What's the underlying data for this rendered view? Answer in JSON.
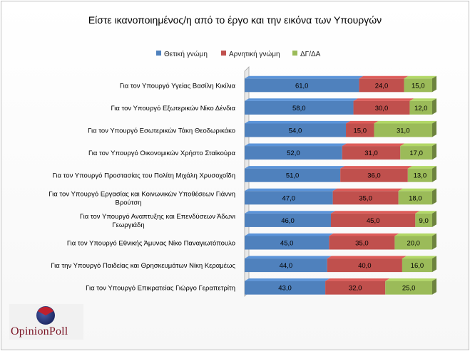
{
  "chart_data": {
    "type": "bar",
    "orientation": "horizontal",
    "stacked": true,
    "title": "Είστε ικανοποιημένος/η από το έργο και την εικόνα των Υπουργών",
    "categories": [
      "Για τον Υπουργό Υγείας Βασίλη Κικίλια",
      "Για τον Υπουργό Εξωτερικών Νίκο Δένδια",
      "Για τον Υπουργό Εσωτερικών Τάκη Θεοδωρικάκο",
      "Για τον Υπουργό Οικονομικών Χρήστο Σταϊκούρα",
      "Για τον Υπουργό Προστασίας του Πολίτη Μιχάλη Χρυσοχοΐδη",
      "Για τον Υπουργό Εργασίας και Κοινωνικών Υποθέσεων Γιάννη Βρούτση",
      "Για τον Υπουργό Αναπτυξης και Επενδύσεων Άδωνι Γεωργιάδη",
      "Για τον Υπουργό Εθνικής Άμυνας Νίκο Παναγιωτόπουλο",
      "Για την Υπουργό Παιδείας και Θρησκευμάτων Νίκη Κεραμέως",
      "Για τον Υπουργό Επικρατείας Γιώργο Γεραπετρίτη"
    ],
    "category_lines": [
      [
        "Για τον Υπουργό Υγείας Βασίλη Κικίλια"
      ],
      [
        "Για τον Υπουργό Εξωτερικών Νίκο Δένδια"
      ],
      [
        "Για τον Υπουργό Εσωτερικών Τάκη Θεοδωρικάκο"
      ],
      [
        "Για τον Υπουργό Οικονομικών Χρήστο Σταϊκούρα"
      ],
      [
        "Για τον Υπουργό Προστασίας του Πολίτη Μιχάλη Χρυσοχοΐδη"
      ],
      [
        "Για τον Υπουργό Εργασίας και Κοινωνικών Υποθέσεων Γιάννη",
        "Βρούτση"
      ],
      [
        "Για τον Υπουργό Αναπτυξης και Επενδύσεων Άδωνι",
        "Γεωργιάδη"
      ],
      [
        "Για τον Υπουργό Εθνικής Άμυνας Νίκο Παναγιωτόπουλο"
      ],
      [
        "Για την Υπουργό Παιδείας και Θρησκευμάτων Νίκη Κεραμέως"
      ],
      [
        "Για τον Υπουργό Επικρατείας Γιώργο Γεραπετρίτη"
      ]
    ],
    "series": [
      {
        "name": "Θετική γνώμη",
        "color": "#4f81bd",
        "values": [
          61,
          58,
          54,
          52,
          51,
          47,
          46,
          45,
          44,
          43
        ]
      },
      {
        "name": "Αρνητική γνώμη",
        "color": "#c0504d",
        "values": [
          24,
          30,
          15,
          31,
          36,
          35,
          45,
          35,
          40,
          32
        ]
      },
      {
        "name": "ΔΓ/ΔΑ",
        "color": "#9bbb59",
        "values": [
          15,
          12,
          31,
          17,
          13,
          18,
          9,
          20,
          16,
          25
        ]
      }
    ],
    "value_format": "1 decimal, comma separator",
    "xlim": [
      0,
      100
    ],
    "legend_position": "top-center"
  },
  "logo": {
    "text": "OpinionPoll"
  }
}
